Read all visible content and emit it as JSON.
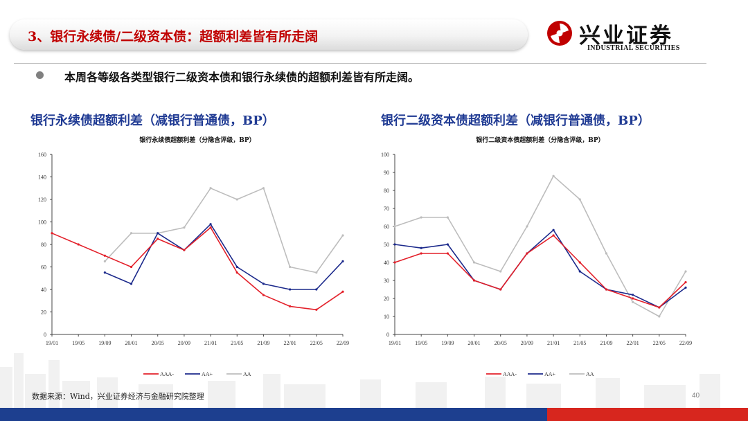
{
  "header": {
    "title": "3、银行永续债/二级资本债：超额利差皆有所走阔",
    "logo_cn": "兴业证券",
    "logo_en": "INDUSTRIAL SECURITIES"
  },
  "bullet": "本周各等级各类型银行二级资本债和银行永续债的超额利差皆有所走阔。",
  "panels": {
    "left_title": "银行永续债超额利差（减银行普通债，BP）",
    "right_title": "银行二级资本债超额利差（减银行普通债，BP）"
  },
  "footer": {
    "source": "数据来源：Wind，兴业证券经济与金融研究院整理",
    "page": "40"
  },
  "colors": {
    "AAA-": "#e3202a",
    "AA+": "#1c2a8c",
    "AA": "#bdbdbd",
    "brand_red": "#c00000",
    "brand_blue": "#1d3f8f"
  },
  "chart_data": [
    {
      "type": "line",
      "title": "银行永续债超额利差（分隐含评级，BP）",
      "xlabel": "",
      "ylabel": "",
      "ylim": [
        0,
        160
      ],
      "yticks": [
        0,
        20,
        40,
        60,
        80,
        100,
        120,
        140,
        160
      ],
      "x": [
        "19/01",
        "19/05",
        "19/09",
        "20/01",
        "20/05",
        "20/09",
        "21/01",
        "21/05",
        "21/09",
        "22/01",
        "22/05",
        "22/09"
      ],
      "xtick_labels": [
        "19/01",
        "19/05",
        "19/09",
        "20/01",
        "20/05",
        "20/09",
        "21/01",
        "21/05",
        "21/09",
        "22/01",
        "22/05",
        "22/09"
      ],
      "legend_position": "bottom",
      "grid": false,
      "series": [
        {
          "name": "AAA-",
          "color": "#e3202a",
          "values": [
            90,
            80,
            70,
            60,
            85,
            75,
            95,
            55,
            35,
            25,
            22,
            38
          ]
        },
        {
          "name": "AA+",
          "color": "#1c2a8c",
          "values": [
            null,
            null,
            55,
            45,
            90,
            75,
            98,
            60,
            45,
            40,
            40,
            65
          ]
        },
        {
          "name": "AA",
          "color": "#bdbdbd",
          "values": [
            null,
            null,
            65,
            90,
            90,
            95,
            130,
            120,
            130,
            60,
            55,
            88
          ]
        }
      ]
    },
    {
      "type": "line",
      "title": "银行二级资本债超额利差（分隐含评级，BP）",
      "xlabel": "",
      "ylabel": "",
      "ylim": [
        0,
        100
      ],
      "yticks": [
        0,
        10,
        20,
        30,
        40,
        50,
        60,
        70,
        80,
        90,
        100
      ],
      "x": [
        "19/01",
        "19/05",
        "19/09",
        "20/01",
        "20/05",
        "20/09",
        "21/01",
        "21/05",
        "21/09",
        "22/01",
        "22/05",
        "22/09"
      ],
      "xtick_labels": [
        "19/01",
        "19/05",
        "19/09",
        "20/01",
        "20/05",
        "20/09",
        "21/01",
        "21/05",
        "21/09",
        "22/01",
        "22/05",
        "22/09"
      ],
      "legend_position": "bottom",
      "grid": false,
      "series": [
        {
          "name": "AAA-",
          "color": "#e3202a",
          "values": [
            40,
            45,
            45,
            30,
            25,
            45,
            55,
            40,
            25,
            20,
            15,
            29
          ]
        },
        {
          "name": "AA+",
          "color": "#1c2a8c",
          "values": [
            50,
            48,
            50,
            30,
            25,
            45,
            58,
            35,
            25,
            22,
            15,
            26
          ]
        },
        {
          "name": "AA",
          "color": "#bdbdbd",
          "values": [
            60,
            65,
            65,
            40,
            35,
            60,
            88,
            75,
            45,
            18,
            10,
            35
          ]
        }
      ]
    }
  ]
}
